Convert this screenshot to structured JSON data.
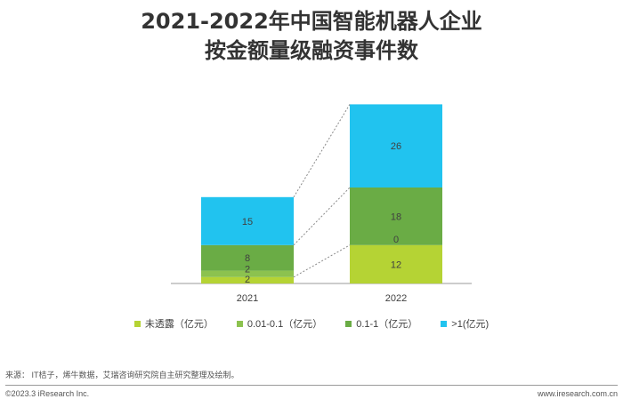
{
  "title": {
    "line1": "2021-2022年中国智能机器人企业",
    "line2": "按金额量级融资事件数"
  },
  "chart_data": {
    "type": "bar",
    "stacked": true,
    "categories": [
      "2021",
      "2022"
    ],
    "series": [
      {
        "name": "未透露（亿元）",
        "color": "#b5d334",
        "values": [
          2,
          12
        ]
      },
      {
        "name": "0.01-0.1（亿元）",
        "color": "#8cc24f",
        "values": [
          2,
          0
        ]
      },
      {
        "name": "0.1-1（亿元）",
        "color": "#6aac45",
        "values": [
          8,
          18
        ]
      },
      {
        "name": ">1(亿元)",
        "color": "#21c3ef",
        "values": [
          15,
          26
        ]
      }
    ],
    "connector_lines": true,
    "legend_position": "bottom",
    "grid": false
  },
  "footer": {
    "source": "来源：  IT桔子，烯牛数据，艾瑞咨询研究院自主研究整理及绘制。",
    "copyright": "©2023.3 iResearch Inc.",
    "website": "www.iresearch.com.cn"
  }
}
